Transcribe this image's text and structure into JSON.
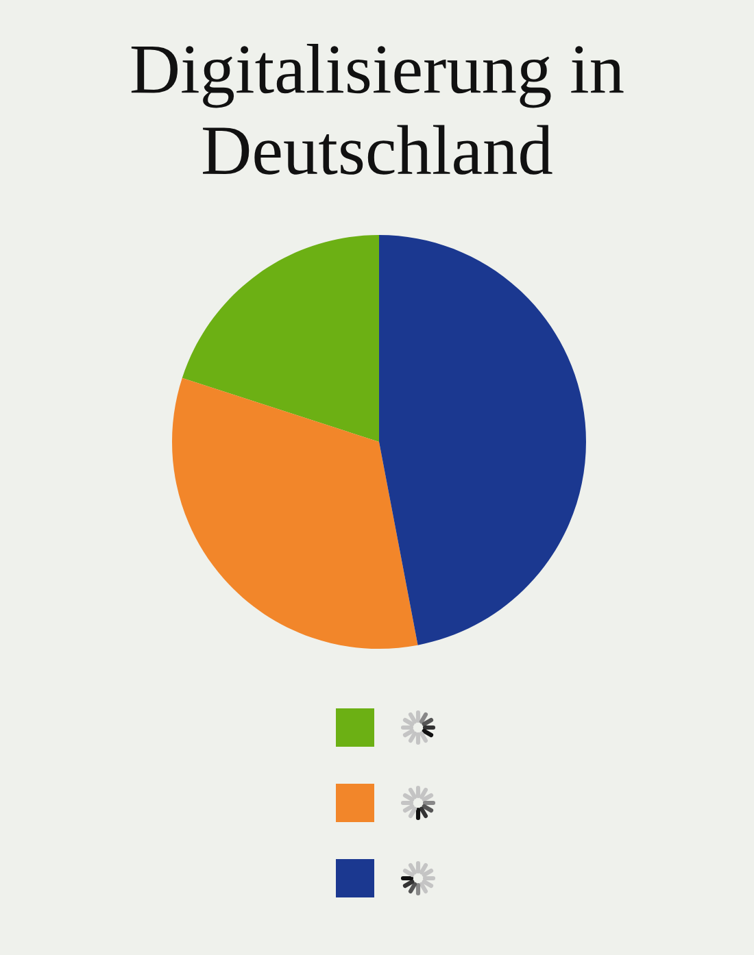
{
  "chart_data": {
    "type": "pie",
    "title": "Digitalisierung in Deutschland",
    "categories": [
      null,
      null,
      null
    ],
    "values": [
      20,
      33,
      47
    ],
    "colors": [
      "#6cb014",
      "#f2862a",
      "#1b3890"
    ]
  }
}
